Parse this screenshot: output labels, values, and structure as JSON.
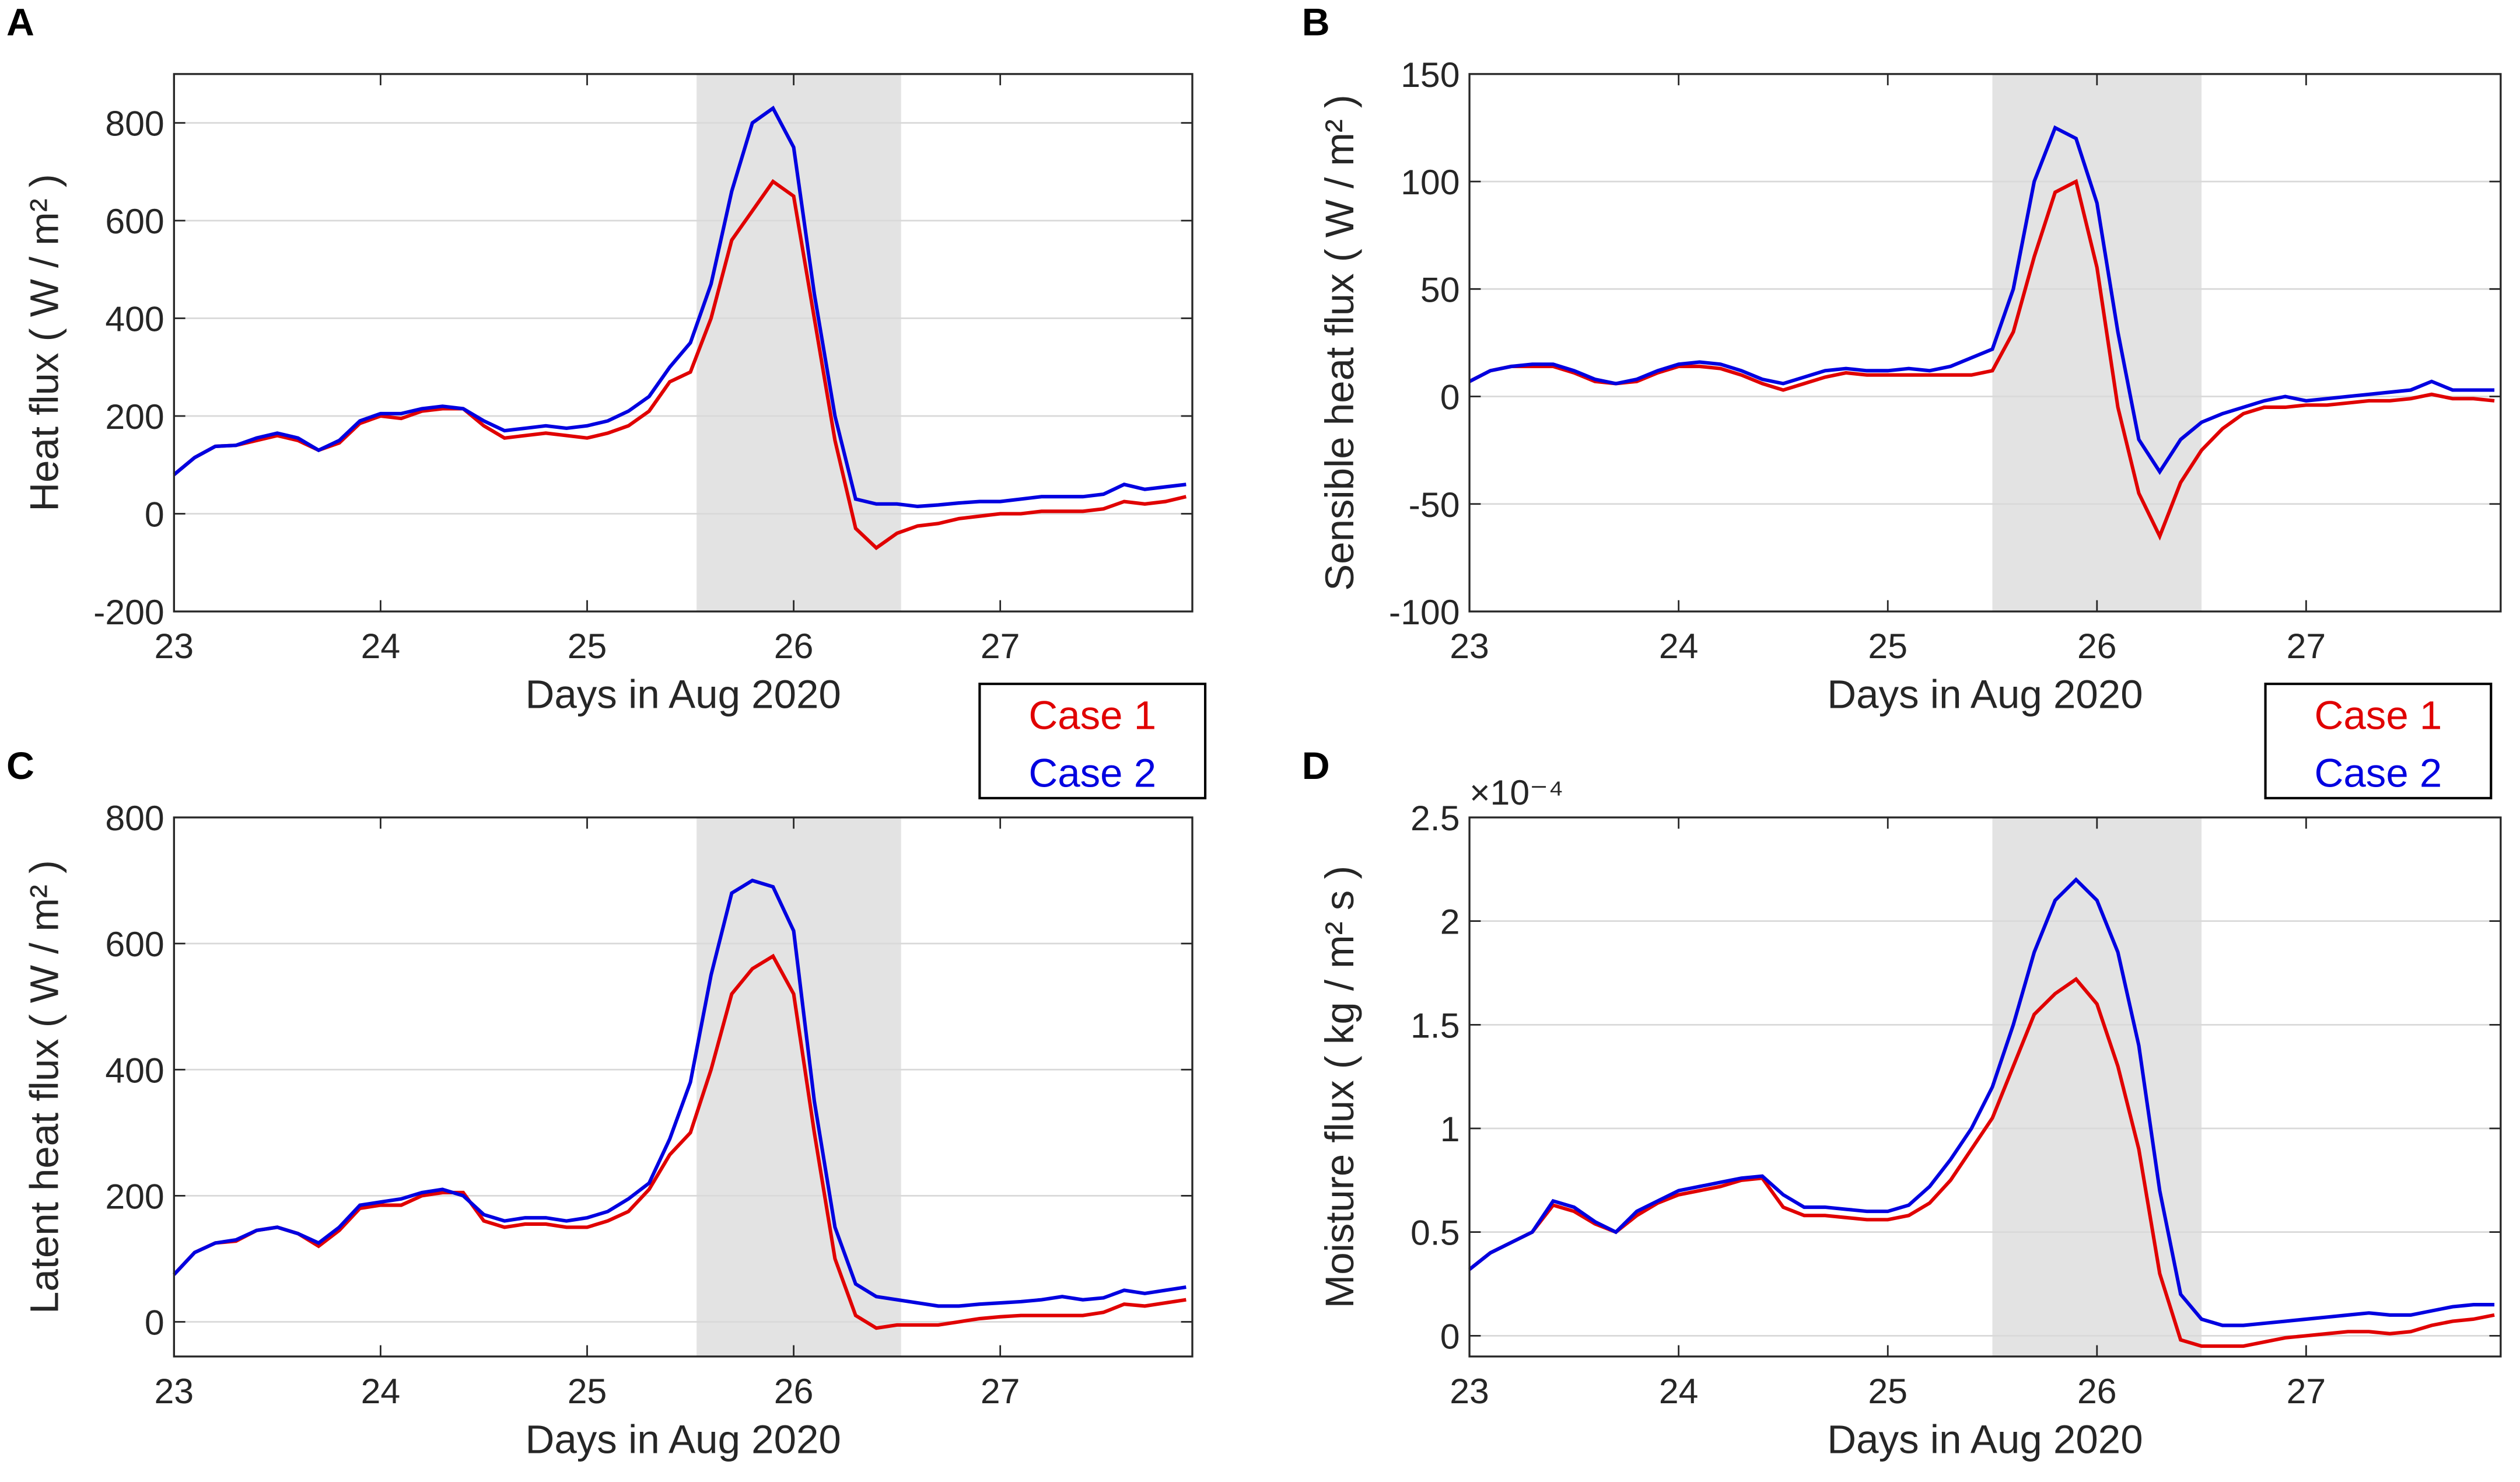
{
  "chart_data": [
    {
      "type": "line",
      "panel": "A",
      "ylabel": "Heat flux ( W / m² )",
      "xlabel": "Days in Aug 2020",
      "xlim": [
        23,
        27.93
      ],
      "xticks": [
        23,
        24,
        25,
        26,
        27
      ],
      "ylim": [
        -200,
        900
      ],
      "yticks": [
        -200,
        0,
        200,
        400,
        600,
        800
      ],
      "grid": true,
      "shade": [
        25.53,
        26.52
      ],
      "legend": true,
      "x": [
        23,
        23.1,
        23.2,
        23.3,
        23.4,
        23.5,
        23.6,
        23.7,
        23.8,
        23.9,
        24,
        24.1,
        24.2,
        24.3,
        24.4,
        24.5,
        24.6,
        24.7,
        24.8,
        24.9,
        25,
        25.1,
        25.2,
        25.3,
        25.4,
        25.5,
        25.6,
        25.7,
        25.8,
        25.9,
        26,
        26.1,
        26.2,
        26.3,
        26.4,
        26.5,
        26.6,
        26.7,
        26.8,
        26.9,
        27,
        27.1,
        27.2,
        27.3,
        27.4,
        27.5,
        27.6,
        27.7,
        27.8,
        27.9
      ],
      "series": [
        {
          "name": "Case 1",
          "color": "#e00000",
          "values": [
            80,
            115,
            138,
            140,
            150,
            160,
            150,
            130,
            145,
            185,
            200,
            195,
            210,
            215,
            215,
            180,
            155,
            160,
            165,
            160,
            155,
            165,
            180,
            210,
            270,
            290,
            400,
            560,
            620,
            680,
            650,
            400,
            150,
            -30,
            -70,
            -40,
            -25,
            -20,
            -10,
            -5,
            0,
            0,
            5,
            5,
            5,
            10,
            25,
            20,
            25,
            35
          ]
        },
        {
          "name": "Case 2",
          "color": "#0000e0",
          "values": [
            80,
            115,
            138,
            140,
            155,
            165,
            155,
            130,
            150,
            190,
            205,
            205,
            215,
            220,
            215,
            190,
            170,
            175,
            180,
            175,
            180,
            190,
            210,
            240,
            300,
            350,
            470,
            660,
            800,
            830,
            750,
            450,
            200,
            30,
            20,
            20,
            15,
            18,
            22,
            25,
            25,
            30,
            35,
            35,
            35,
            40,
            60,
            50,
            55,
            60
          ]
        }
      ]
    },
    {
      "type": "line",
      "panel": "B",
      "ylabel": "Sensible heat flux ( W / m² )",
      "xlabel": "Days in Aug 2020",
      "xlim": [
        23,
        27.93
      ],
      "xticks": [
        23,
        24,
        25,
        26,
        27
      ],
      "ylim": [
        -100,
        150
      ],
      "yticks": [
        -100,
        -50,
        0,
        50,
        100,
        150
      ],
      "grid": true,
      "shade": [
        25.5,
        26.5
      ],
      "legend": true,
      "x": [
        23,
        23.1,
        23.2,
        23.3,
        23.4,
        23.5,
        23.6,
        23.7,
        23.8,
        23.9,
        24,
        24.1,
        24.2,
        24.3,
        24.4,
        24.5,
        24.6,
        24.7,
        24.8,
        24.9,
        25,
        25.1,
        25.2,
        25.3,
        25.4,
        25.5,
        25.6,
        25.7,
        25.8,
        25.9,
        26,
        26.1,
        26.2,
        26.3,
        26.4,
        26.5,
        26.6,
        26.7,
        26.8,
        26.9,
        27,
        27.1,
        27.2,
        27.3,
        27.4,
        27.5,
        27.6,
        27.7,
        27.8,
        27.9
      ],
      "series": [
        {
          "name": "Case 1",
          "color": "#e00000",
          "values": [
            7,
            12,
            14,
            14,
            14,
            11,
            7,
            6,
            7,
            11,
            14,
            14,
            13,
            10,
            6,
            3,
            6,
            9,
            11,
            10,
            10,
            10,
            10,
            10,
            10,
            12,
            30,
            65,
            95,
            100,
            60,
            -5,
            -45,
            -65,
            -40,
            -25,
            -15,
            -8,
            -5,
            -5,
            -4,
            -4,
            -3,
            -2,
            -2,
            -1,
            1,
            -1,
            -1,
            -2
          ]
        },
        {
          "name": "Case 2",
          "color": "#0000e0",
          "values": [
            7,
            12,
            14,
            15,
            15,
            12,
            8,
            6,
            8,
            12,
            15,
            16,
            15,
            12,
            8,
            6,
            9,
            12,
            13,
            12,
            12,
            13,
            12,
            14,
            18,
            22,
            50,
            100,
            125,
            120,
            90,
            30,
            -20,
            -35,
            -20,
            -12,
            -8,
            -5,
            -2,
            0,
            -2,
            -1,
            0,
            1,
            2,
            3,
            7,
            3,
            3,
            3
          ]
        }
      ]
    },
    {
      "type": "line",
      "panel": "C",
      "ylabel": "Latent heat flux ( W / m² )",
      "xlabel": "Days in Aug 2020",
      "xlim": [
        23,
        27.93
      ],
      "xticks": [
        23,
        24,
        25,
        26,
        27
      ],
      "ylim": [
        -55,
        800
      ],
      "yticks": [
        0,
        200,
        400,
        600,
        800
      ],
      "grid": true,
      "shade": [
        25.53,
        26.52
      ],
      "x": [
        23,
        23.1,
        23.2,
        23.3,
        23.4,
        23.5,
        23.6,
        23.7,
        23.8,
        23.9,
        24,
        24.1,
        24.2,
        24.3,
        24.4,
        24.5,
        24.6,
        24.7,
        24.8,
        24.9,
        25,
        25.1,
        25.2,
        25.3,
        25.4,
        25.5,
        25.6,
        25.7,
        25.8,
        25.9,
        26,
        26.1,
        26.2,
        26.3,
        26.4,
        26.5,
        26.6,
        26.7,
        26.8,
        26.9,
        27,
        27.1,
        27.2,
        27.3,
        27.4,
        27.5,
        27.6,
        27.7,
        27.8,
        27.9
      ],
      "series": [
        {
          "name": "Case 1",
          "color": "#e00000",
          "values": [
            75,
            110,
            125,
            128,
            145,
            150,
            140,
            120,
            145,
            180,
            185,
            185,
            200,
            205,
            205,
            160,
            150,
            155,
            155,
            150,
            150,
            160,
            175,
            210,
            265,
            300,
            400,
            520,
            560,
            580,
            520,
            300,
            100,
            10,
            -10,
            -5,
            -5,
            -5,
            0,
            5,
            8,
            10,
            10,
            10,
            10,
            15,
            28,
            25,
            30,
            35
          ]
        },
        {
          "name": "Case 2",
          "color": "#0000e0",
          "values": [
            75,
            110,
            125,
            130,
            145,
            150,
            140,
            125,
            150,
            185,
            190,
            195,
            205,
            210,
            200,
            170,
            160,
            165,
            165,
            160,
            165,
            175,
            195,
            220,
            290,
            380,
            550,
            680,
            700,
            690,
            620,
            350,
            150,
            60,
            40,
            35,
            30,
            25,
            25,
            28,
            30,
            32,
            35,
            40,
            35,
            38,
            50,
            45,
            50,
            55
          ]
        }
      ]
    },
    {
      "type": "line",
      "panel": "D",
      "ylabel": "Moisture flux ( kg / m² s )",
      "xlabel": "Days in Aug 2020",
      "y_exponent_label": "×10⁻⁴",
      "xlim": [
        23,
        27.93
      ],
      "xticks": [
        23,
        24,
        25,
        26,
        27
      ],
      "ylim": [
        -0.1,
        2.5
      ],
      "yticks": [
        0,
        0.5,
        1,
        1.5,
        2,
        2.5
      ],
      "grid": true,
      "shade": [
        25.5,
        26.5
      ],
      "x": [
        23,
        23.1,
        23.2,
        23.3,
        23.4,
        23.5,
        23.6,
        23.7,
        23.8,
        23.9,
        24,
        24.1,
        24.2,
        24.3,
        24.4,
        24.5,
        24.6,
        24.7,
        24.8,
        24.9,
        25,
        25.1,
        25.2,
        25.3,
        25.4,
        25.5,
        25.6,
        25.7,
        25.8,
        25.9,
        26,
        26.1,
        26.2,
        26.3,
        26.4,
        26.5,
        26.6,
        26.7,
        26.8,
        26.9,
        27,
        27.1,
        27.2,
        27.3,
        27.4,
        27.5,
        27.6,
        27.7,
        27.8,
        27.9
      ],
      "series": [
        {
          "name": "Case 1",
          "color": "#e00000",
          "values": [
            0.32,
            0.4,
            0.45,
            0.5,
            0.63,
            0.6,
            0.54,
            0.5,
            0.58,
            0.64,
            0.68,
            0.7,
            0.72,
            0.75,
            0.76,
            0.62,
            0.58,
            0.58,
            0.57,
            0.56,
            0.56,
            0.58,
            0.64,
            0.75,
            0.9,
            1.05,
            1.3,
            1.55,
            1.65,
            1.72,
            1.6,
            1.3,
            0.9,
            0.3,
            -0.02,
            -0.05,
            -0.05,
            -0.05,
            -0.03,
            -0.01,
            0,
            0.01,
            0.02,
            0.02,
            0.01,
            0.02,
            0.05,
            0.07,
            0.08,
            0.1
          ]
        },
        {
          "name": "Case 2",
          "color": "#0000e0",
          "values": [
            0.32,
            0.4,
            0.45,
            0.5,
            0.65,
            0.62,
            0.55,
            0.5,
            0.6,
            0.65,
            0.7,
            0.72,
            0.74,
            0.76,
            0.77,
            0.68,
            0.62,
            0.62,
            0.61,
            0.6,
            0.6,
            0.63,
            0.72,
            0.85,
            1.0,
            1.2,
            1.5,
            1.85,
            2.1,
            2.2,
            2.1,
            1.85,
            1.4,
            0.7,
            0.2,
            0.08,
            0.05,
            0.05,
            0.06,
            0.07,
            0.08,
            0.09,
            0.1,
            0.11,
            0.1,
            0.1,
            0.12,
            0.14,
            0.15,
            0.15
          ]
        }
      ]
    }
  ]
}
